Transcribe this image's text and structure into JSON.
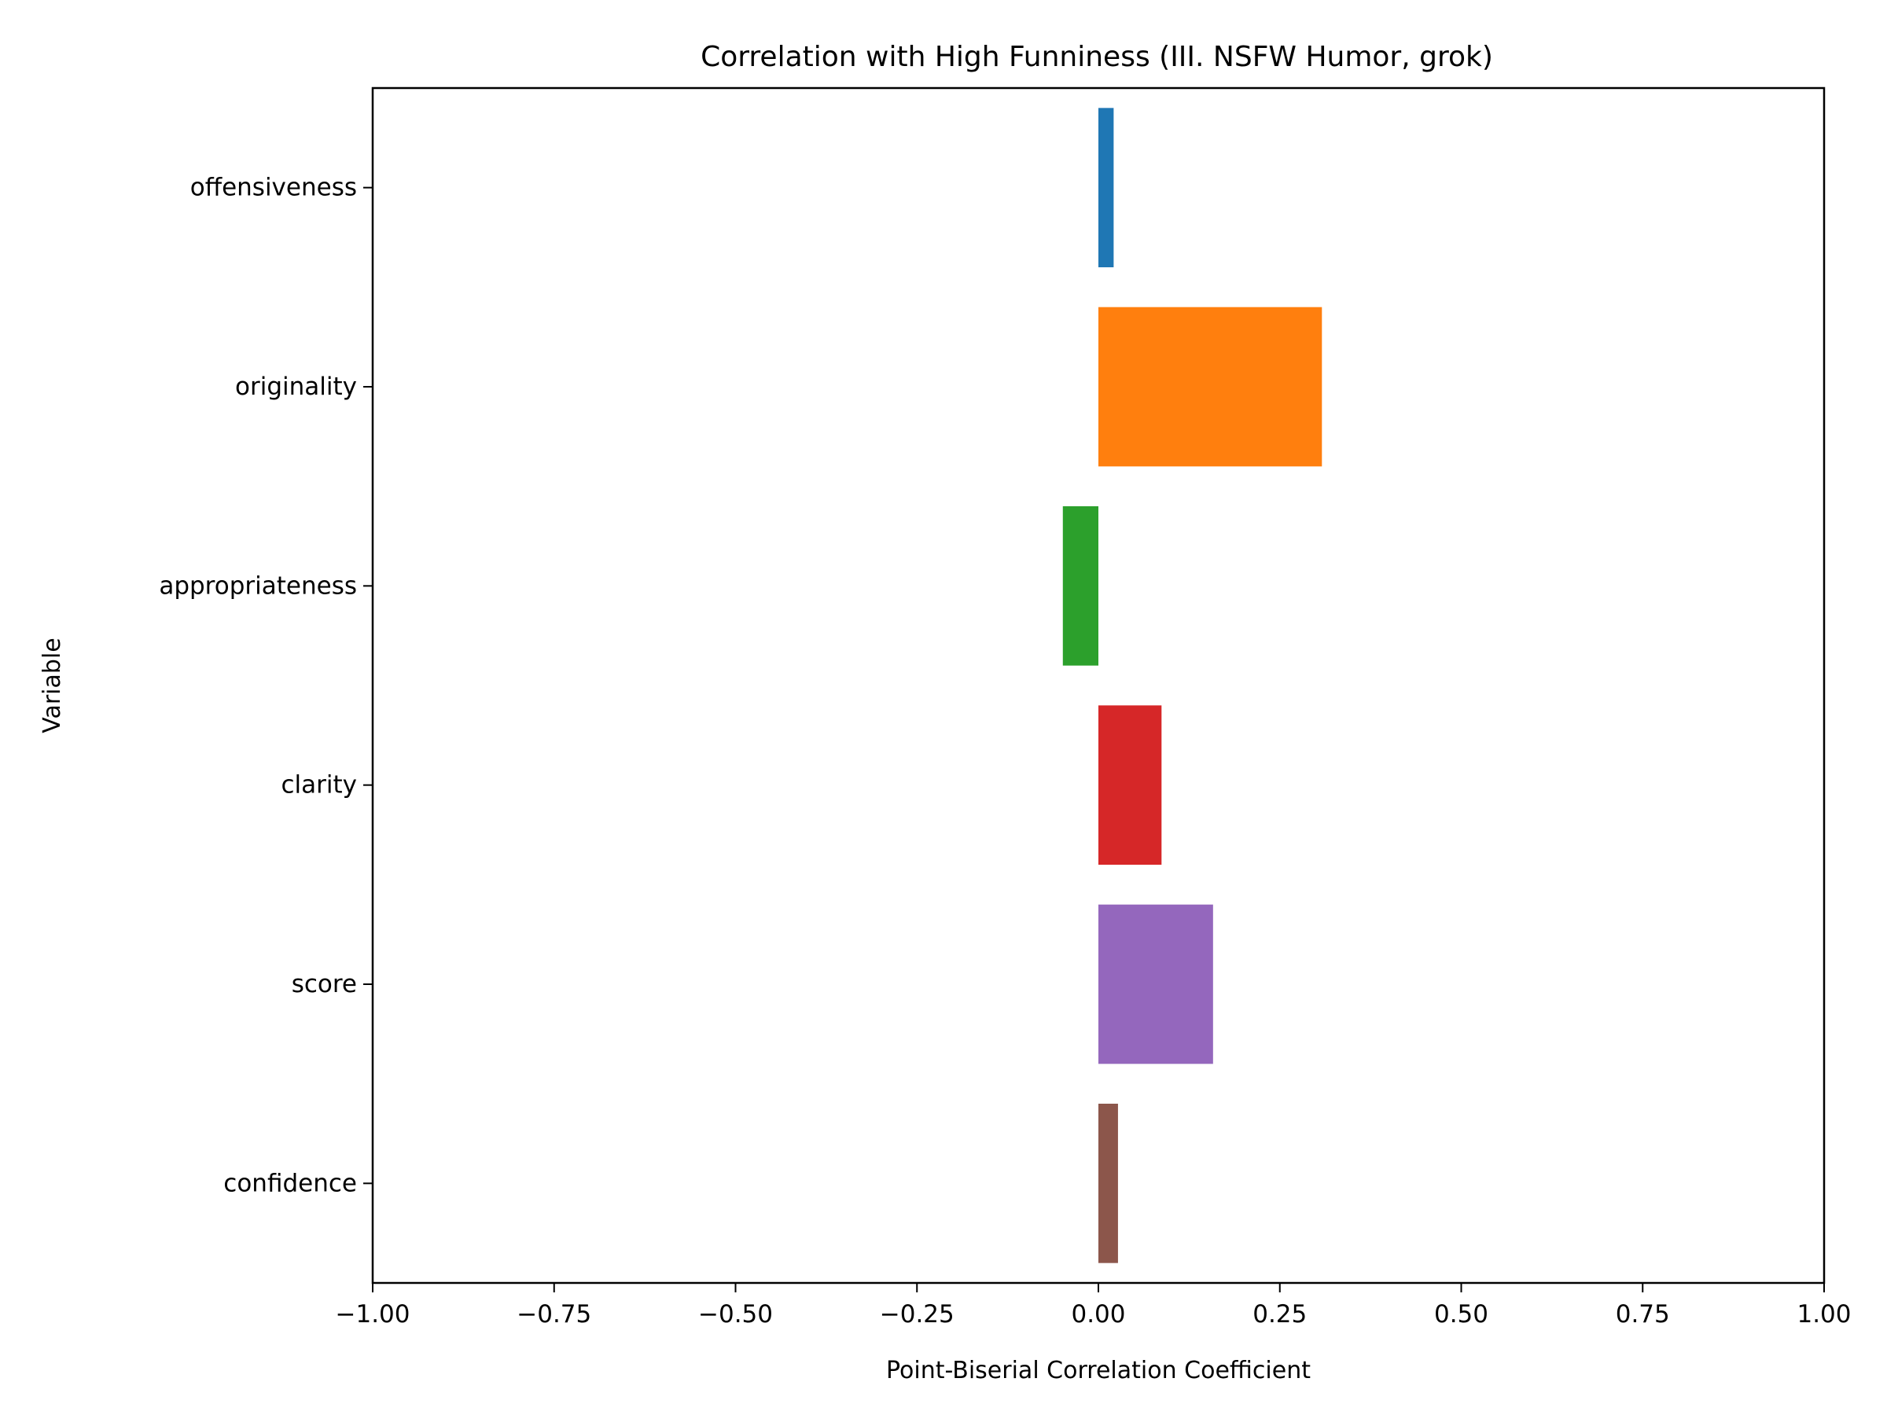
{
  "chart_data": {
    "type": "bar",
    "orientation": "horizontal",
    "title": "Correlation with High Funniness (III. NSFW Humor, grok)",
    "xlabel": "Point-Biserial Correlation Coefficient",
    "ylabel": "Variable",
    "xlim": [
      -1.0,
      1.0
    ],
    "xticks": [
      -1.0,
      -0.75,
      -0.5,
      -0.25,
      0.0,
      0.25,
      0.5,
      0.75,
      1.0
    ],
    "xtick_labels": [
      "−1.00",
      "−0.75",
      "−0.50",
      "−0.25",
      "0.00",
      "0.25",
      "0.50",
      "0.75",
      "1.00"
    ],
    "categories": [
      "offensiveness",
      "originality",
      "appropriateness",
      "clarity",
      "score",
      "confidence"
    ],
    "values": [
      0.021,
      0.308,
      -0.049,
      0.087,
      0.158,
      0.027
    ],
    "colors": [
      "#1f77b4",
      "#ff7f0e",
      "#2ca02c",
      "#d62728",
      "#9467bd",
      "#8c564b"
    ],
    "grid": false,
    "legend": "none"
  }
}
